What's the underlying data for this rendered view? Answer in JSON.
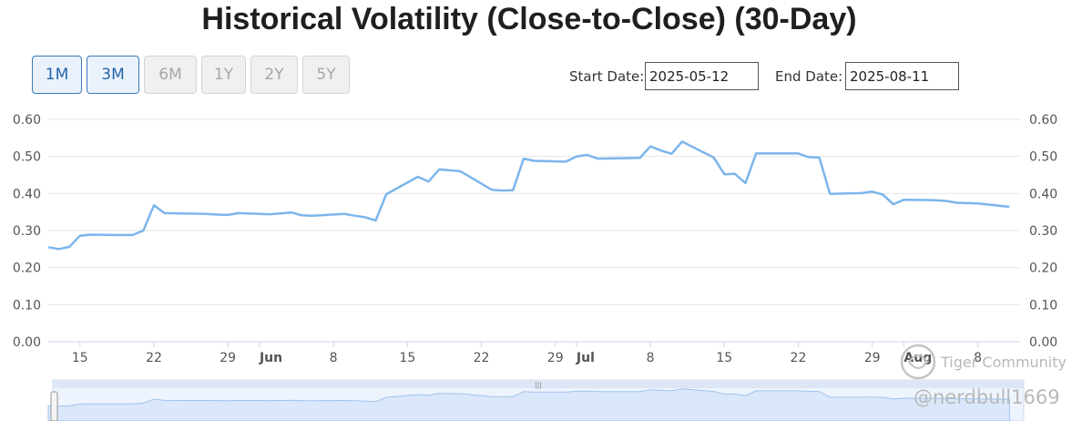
{
  "header": {
    "title": "Historical Volatility (Close-to-Close) (30-Day)"
  },
  "range_buttons": [
    {
      "label": "1M",
      "state": "active"
    },
    {
      "label": "3M",
      "state": "active"
    },
    {
      "label": "6M",
      "state": "disabled"
    },
    {
      "label": "1Y",
      "state": "disabled"
    },
    {
      "label": "2Y",
      "state": "disabled"
    },
    {
      "label": "5Y",
      "state": "disabled"
    }
  ],
  "dates": {
    "start_label": "Start Date:",
    "start_value": "2025-05-12",
    "end_label": "End Date:",
    "end_value": "2025-08-11"
  },
  "watermark": {
    "brand": "Tiger Community",
    "handle": "@nerdbull1669"
  },
  "colors": {
    "line": "#7cb5ec",
    "grid": "#e6e6e6",
    "navigator_fill": "#dbe8fb",
    "button_active": "#2266aa"
  },
  "chart_data": {
    "type": "line",
    "title": "Historical Volatility (Close-to-Close) (30-Day)",
    "ylim": [
      0,
      0.6
    ],
    "ytick_labels": [
      "0.00",
      "0.10",
      "0.20",
      "0.30",
      "0.40",
      "0.50",
      "0.60"
    ],
    "x_domain": [
      "2025-05-12",
      "2025-08-12"
    ],
    "xtick_labels": [
      {
        "label": "15",
        "date": "2025-05-15",
        "month": false
      },
      {
        "label": "22",
        "date": "2025-05-22",
        "month": false
      },
      {
        "label": "29",
        "date": "2025-05-29",
        "month": false
      },
      {
        "label": "Jun",
        "date": "2025-06-01",
        "month": true
      },
      {
        "label": "8",
        "date": "2025-06-08",
        "month": false
      },
      {
        "label": "15",
        "date": "2025-06-15",
        "month": false
      },
      {
        "label": "22",
        "date": "2025-06-22",
        "month": false
      },
      {
        "label": "29",
        "date": "2025-06-29",
        "month": false
      },
      {
        "label": "Jul",
        "date": "2025-07-01",
        "month": true
      },
      {
        "label": "8",
        "date": "2025-07-08",
        "month": false
      },
      {
        "label": "15",
        "date": "2025-07-15",
        "month": false
      },
      {
        "label": "22",
        "date": "2025-07-22",
        "month": false
      },
      {
        "label": "29",
        "date": "2025-07-29",
        "month": false
      },
      {
        "label": "Aug",
        "date": "2025-08-01",
        "month": true
      },
      {
        "label": "8",
        "date": "2025-08-08",
        "month": false
      }
    ],
    "series": [
      {
        "name": "Historical Volatility (30-Day)",
        "x": [
          "2025-05-12",
          "2025-05-13",
          "2025-05-14",
          "2025-05-15",
          "2025-05-16",
          "2025-05-19",
          "2025-05-20",
          "2025-05-21",
          "2025-05-22",
          "2025-05-23",
          "2025-05-27",
          "2025-05-28",
          "2025-05-29",
          "2025-05-30",
          "2025-06-02",
          "2025-06-03",
          "2025-06-04",
          "2025-06-05",
          "2025-06-06",
          "2025-06-09",
          "2025-06-10",
          "2025-06-11",
          "2025-06-12",
          "2025-06-13",
          "2025-06-16",
          "2025-06-17",
          "2025-06-18",
          "2025-06-20",
          "2025-06-23",
          "2025-06-24",
          "2025-06-25",
          "2025-06-26",
          "2025-06-27",
          "2025-06-30",
          "2025-07-01",
          "2025-07-02",
          "2025-07-03",
          "2025-07-07",
          "2025-07-08",
          "2025-07-09",
          "2025-07-10",
          "2025-07-11",
          "2025-07-14",
          "2025-07-15",
          "2025-07-16",
          "2025-07-17",
          "2025-07-18",
          "2025-07-21",
          "2025-07-22",
          "2025-07-23",
          "2025-07-24",
          "2025-07-25",
          "2025-07-28",
          "2025-07-29",
          "2025-07-30",
          "2025-07-31",
          "2025-08-01",
          "2025-08-04",
          "2025-08-05",
          "2025-08-06",
          "2025-08-07",
          "2025-08-08",
          "2025-08-11"
        ],
        "values": [
          0.255,
          0.25,
          0.256,
          0.286,
          0.289,
          0.288,
          0.288,
          0.3,
          0.368,
          0.347,
          0.345,
          0.343,
          0.342,
          0.347,
          0.344,
          0.346,
          0.349,
          0.341,
          0.34,
          0.345,
          0.34,
          0.336,
          0.327,
          0.398,
          0.445,
          0.432,
          0.465,
          0.46,
          0.41,
          0.408,
          0.409,
          0.494,
          0.488,
          0.486,
          0.5,
          0.504,
          0.494,
          0.496,
          0.527,
          0.516,
          0.507,
          0.54,
          0.497,
          0.452,
          0.453,
          0.428,
          0.508,
          0.508,
          0.508,
          0.498,
          0.497,
          0.399,
          0.401,
          0.405,
          0.397,
          0.371,
          0.383,
          0.382,
          0.38,
          0.375,
          0.374,
          0.373,
          0.364
        ]
      }
    ]
  }
}
